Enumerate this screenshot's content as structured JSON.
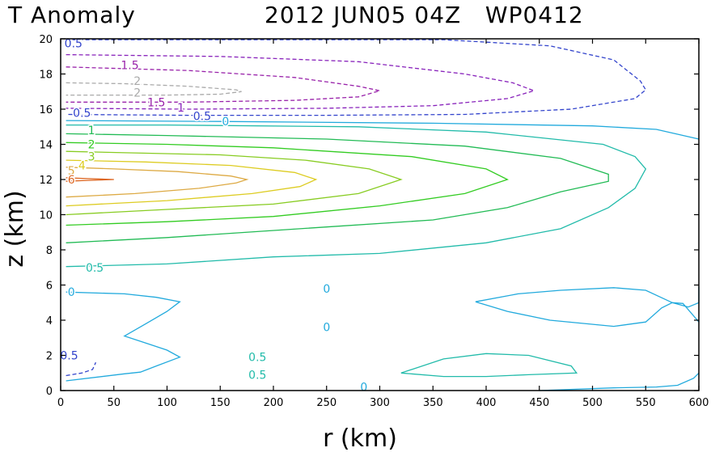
{
  "chart_data": {
    "type": "contour",
    "title_left": "T Anomaly",
    "title_right": "2012 JUN05 04Z   WP0412",
    "xlabel": "r (km)",
    "ylabel": "z (km)",
    "xlim": [
      0,
      600
    ],
    "ylim": [
      0,
      20
    ],
    "xticks": [
      0,
      50,
      100,
      150,
      200,
      250,
      300,
      350,
      400,
      450,
      500,
      550,
      600
    ],
    "yticks": [
      0,
      2,
      4,
      6,
      8,
      10,
      12,
      14,
      16,
      18,
      20
    ],
    "grid": false,
    "colors": {
      "c-0.5": "#3344cc",
      "c-1": "#8822bb",
      "c-1.5": "#9922aa",
      "c-2": "#aaaaaa",
      "c0": "#22aadd",
      "c0.5": "#22bbaa",
      "c1": "#22bb55",
      "c2": "#33cc22",
      "c3": "#88cc22",
      "c4": "#ddcc22",
      "c5": "#ddaa44",
      "c6": "#dd6622"
    },
    "contours": [
      {
        "level": -0.5,
        "color": "c-0.5",
        "dashed": true,
        "points": [
          [
            5,
            19.95
          ],
          [
            250,
            19.95
          ],
          [
            360,
            19.95
          ],
          [
            460,
            19.6
          ],
          [
            520,
            18.8
          ],
          [
            545,
            17.6
          ],
          [
            550,
            17.1
          ],
          [
            540,
            16.6
          ],
          [
            480,
            16.0
          ],
          [
            380,
            15.7
          ],
          [
            250,
            15.65
          ],
          [
            120,
            15.65
          ],
          [
            5,
            15.7
          ]
        ]
      },
      {
        "level": -0.5,
        "color": "c-0.5",
        "dashed": true,
        "points": [
          [
            5,
            0.85
          ],
          [
            20,
            1.0
          ],
          [
            30,
            1.2
          ],
          [
            33,
            1.6
          ]
        ]
      },
      {
        "level": -1,
        "color": "c-1",
        "dashed": true,
        "points": [
          [
            5,
            19.1
          ],
          [
            150,
            19.0
          ],
          [
            280,
            18.7
          ],
          [
            380,
            18.0
          ],
          [
            425,
            17.5
          ],
          [
            445,
            17.05
          ],
          [
            420,
            16.6
          ],
          [
            350,
            16.2
          ],
          [
            250,
            16.05
          ],
          [
            120,
            16.0
          ],
          [
            5,
            16.05
          ]
        ]
      },
      {
        "level": -1.5,
        "color": "c-1.5",
        "dashed": true,
        "points": [
          [
            5,
            18.4
          ],
          [
            120,
            18.2
          ],
          [
            220,
            17.8
          ],
          [
            280,
            17.3
          ],
          [
            300,
            17.05
          ],
          [
            280,
            16.7
          ],
          [
            220,
            16.5
          ],
          [
            120,
            16.4
          ],
          [
            5,
            16.4
          ]
        ]
      },
      {
        "level": -2,
        "color": "c-2",
        "dashed": true,
        "points": [
          [
            5,
            17.5
          ],
          [
            60,
            17.45
          ],
          [
            120,
            17.3
          ],
          [
            165,
            17.1
          ],
          [
            170,
            17.0
          ],
          [
            150,
            16.85
          ],
          [
            100,
            16.8
          ],
          [
            5,
            16.8
          ]
        ]
      },
      {
        "level": 0,
        "color": "c0",
        "dashed": false,
        "points": [
          [
            5,
            15.35
          ],
          [
            150,
            15.3
          ],
          [
            350,
            15.2
          ],
          [
            500,
            15.05
          ],
          [
            560,
            14.85
          ],
          [
            600,
            14.3
          ]
        ]
      },
      {
        "level": 0,
        "color": "c0",
        "dashed": false,
        "points": [
          [
            5,
            5.6
          ],
          [
            60,
            5.5
          ],
          [
            90,
            5.3
          ],
          [
            112,
            5.05
          ],
          [
            100,
            4.5
          ],
          [
            80,
            3.8
          ],
          [
            60,
            3.1
          ],
          [
            80,
            2.7
          ],
          [
            100,
            2.3
          ],
          [
            112,
            1.9
          ],
          [
            90,
            1.4
          ],
          [
            75,
            1.05
          ],
          [
            60,
            0.95
          ],
          [
            5,
            0.55
          ]
        ]
      },
      {
        "level": 0,
        "color": "c0",
        "dashed": false,
        "points": [
          [
            390,
            5.05
          ],
          [
            430,
            5.5
          ],
          [
            470,
            5.7
          ],
          [
            520,
            5.85
          ],
          [
            550,
            5.7
          ],
          [
            575,
            5.0
          ],
          [
            590,
            4.75
          ],
          [
            600,
            5.0
          ],
          [
            600,
            5.9
          ]
        ]
      },
      {
        "level": 0,
        "color": "c0",
        "dashed": false,
        "points": [
          [
            390,
            5.05
          ],
          [
            420,
            4.5
          ],
          [
            460,
            4.0
          ],
          [
            520,
            3.65
          ],
          [
            550,
            3.9
          ],
          [
            565,
            4.7
          ],
          [
            575,
            5.0
          ],
          [
            585,
            4.95
          ],
          [
            600,
            3.9
          ]
        ]
      },
      {
        "level": 0,
        "color": "c0",
        "dashed": false,
        "points": [
          [
            450,
            0.0
          ],
          [
            520,
            0.15
          ],
          [
            560,
            0.2
          ],
          [
            580,
            0.3
          ],
          [
            595,
            0.7
          ],
          [
            600,
            1.0
          ]
        ]
      },
      {
        "level": 0.5,
        "color": "c0.5",
        "dashed": false,
        "points": [
          [
            5,
            7.05
          ],
          [
            100,
            7.2
          ],
          [
            200,
            7.6
          ],
          [
            300,
            7.8
          ],
          [
            400,
            8.4
          ],
          [
            470,
            9.2
          ],
          [
            515,
            10.4
          ],
          [
            540,
            11.5
          ],
          [
            550,
            12.6
          ],
          [
            540,
            13.3
          ],
          [
            510,
            14.0
          ],
          [
            400,
            14.7
          ],
          [
            280,
            15.0
          ],
          [
            100,
            15.1
          ],
          [
            5,
            15.1
          ]
        ]
      },
      {
        "level": 0.5,
        "color": "c0.5",
        "dashed": false,
        "points": [
          [
            320,
            1.0
          ],
          [
            360,
            1.8
          ],
          [
            400,
            2.1
          ],
          [
            440,
            2.0
          ],
          [
            480,
            1.4
          ],
          [
            485,
            1.0
          ],
          [
            440,
            0.9
          ],
          [
            400,
            0.8
          ],
          [
            360,
            0.8
          ],
          [
            320,
            1.0
          ]
        ]
      },
      {
        "level": 1,
        "color": "c1",
        "dashed": false,
        "points": [
          [
            5,
            8.4
          ],
          [
            100,
            8.7
          ],
          [
            250,
            9.3
          ],
          [
            350,
            9.7
          ],
          [
            420,
            10.4
          ],
          [
            470,
            11.3
          ],
          [
            515,
            11.9
          ],
          [
            515,
            12.3
          ],
          [
            470,
            13.2
          ],
          [
            380,
            13.9
          ],
          [
            250,
            14.3
          ],
          [
            100,
            14.5
          ],
          [
            5,
            14.6
          ]
        ]
      },
      {
        "level": 2,
        "color": "c2",
        "dashed": false,
        "points": [
          [
            5,
            9.4
          ],
          [
            100,
            9.6
          ],
          [
            200,
            9.9
          ],
          [
            300,
            10.5
          ],
          [
            380,
            11.2
          ],
          [
            420,
            12.0
          ],
          [
            400,
            12.6
          ],
          [
            330,
            13.3
          ],
          [
            200,
            13.8
          ],
          [
            100,
            14.0
          ],
          [
            5,
            14.1
          ]
        ]
      },
      {
        "level": 3,
        "color": "c3",
        "dashed": false,
        "points": [
          [
            5,
            10.0
          ],
          [
            100,
            10.3
          ],
          [
            200,
            10.6
          ],
          [
            280,
            11.2
          ],
          [
            320,
            12.0
          ],
          [
            290,
            12.6
          ],
          [
            230,
            13.1
          ],
          [
            150,
            13.4
          ],
          [
            5,
            13.6
          ]
        ]
      },
      {
        "level": 4,
        "color": "c4",
        "dashed": false,
        "points": [
          [
            5,
            10.5
          ],
          [
            100,
            10.8
          ],
          [
            180,
            11.2
          ],
          [
            225,
            11.6
          ],
          [
            240,
            12.0
          ],
          [
            220,
            12.4
          ],
          [
            160,
            12.8
          ],
          [
            80,
            13.0
          ],
          [
            5,
            13.1
          ]
        ]
      },
      {
        "level": 5,
        "color": "c5",
        "dashed": false,
        "points": [
          [
            5,
            11.0
          ],
          [
            70,
            11.2
          ],
          [
            130,
            11.5
          ],
          [
            165,
            11.8
          ],
          [
            175,
            12.0
          ],
          [
            160,
            12.2
          ],
          [
            110,
            12.45
          ],
          [
            50,
            12.6
          ],
          [
            5,
            12.7
          ]
        ]
      },
      {
        "level": 6,
        "color": "c6",
        "dashed": false,
        "points": [
          [
            5,
            11.9
          ],
          [
            25,
            11.95
          ],
          [
            50,
            12.0
          ],
          [
            25,
            12.05
          ],
          [
            5,
            12.1
          ]
        ]
      }
    ],
    "contour_labels": [
      {
        "text": "0.5",
        "color": "c-0.5",
        "x": 12,
        "y": 19.75
      },
      {
        "text": "1.5",
        "color": "c-1.5",
        "x": 65,
        "y": 18.5
      },
      {
        "text": "2",
        "color": "c-2",
        "x": 72,
        "y": 17.6
      },
      {
        "text": "2",
        "color": "c-2",
        "x": 72,
        "y": 16.95
      },
      {
        "text": "1.5",
        "color": "c-1.5",
        "x": 90,
        "y": 16.4
      },
      {
        "text": "1",
        "color": "c-1",
        "x": 113,
        "y": 16.1
      },
      {
        "text": "0.5",
        "color": "c-0.5",
        "x": 133,
        "y": 15.6
      },
      {
        "text": "0.5",
        "color": "c-0.5",
        "x": 20,
        "y": 15.8
      },
      {
        "text": "0",
        "color": "c0",
        "x": 155,
        "y": 15.3
      },
      {
        "text": "1",
        "color": "c1",
        "x": 29,
        "y": 14.8
      },
      {
        "text": "2",
        "color": "c2",
        "x": 29,
        "y": 14.0
      },
      {
        "text": "3",
        "color": "c3",
        "x": 29,
        "y": 13.3
      },
      {
        "text": "4",
        "color": "c4",
        "x": 20,
        "y": 12.8
      },
      {
        "text": "5",
        "color": "c5",
        "x": 10,
        "y": 12.5
      },
      {
        "text": "6",
        "color": "c6",
        "x": 10,
        "y": 12.0
      },
      {
        "text": "0.5",
        "color": "c0.5",
        "x": 32,
        "y": 7.0
      },
      {
        "text": "0",
        "color": "c0",
        "x": 10,
        "y": 5.6
      },
      {
        "text": "0",
        "color": "c0",
        "x": 250,
        "y": 5.8
      },
      {
        "text": "0",
        "color": "c0",
        "x": 250,
        "y": 3.6
      },
      {
        "text": "0.5",
        "color": "c0.5",
        "x": 185,
        "y": 1.9
      },
      {
        "text": "0.5",
        "color": "c0.5",
        "x": 185,
        "y": 0.9
      },
      {
        "text": "0.5",
        "color": "c-0.5",
        "x": 8,
        "y": 2.0
      },
      {
        "text": "0",
        "color": "c0",
        "x": 285,
        "y": 0.2
      }
    ]
  }
}
